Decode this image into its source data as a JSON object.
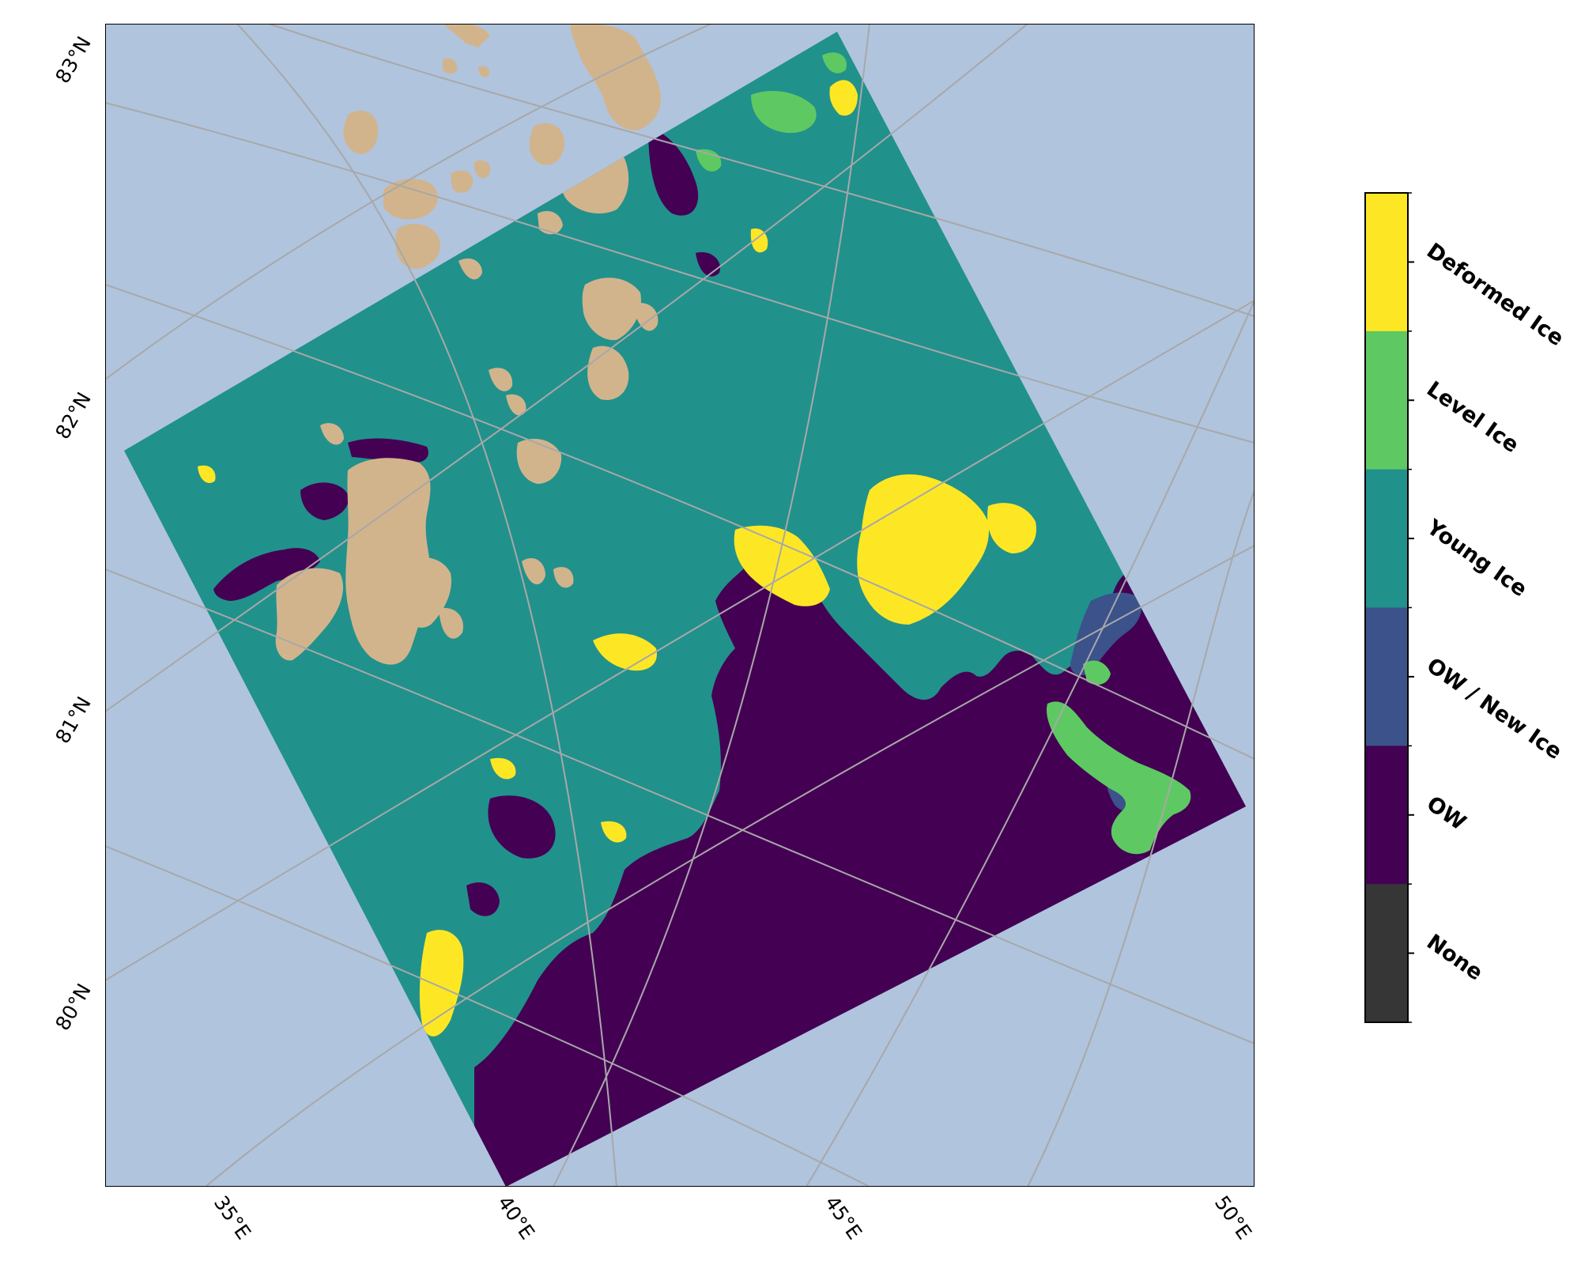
{
  "map": {
    "colors": {
      "ocean": "#b0c4de",
      "land": "#d2b48c",
      "gridline": "#a8a8a8",
      "frame": "#000000"
    },
    "lat_labels": [
      "83°N",
      "82°N",
      "81°N",
      "80°N"
    ],
    "lon_labels": [
      "35°E",
      "40°E",
      "45°E",
      "50°E"
    ]
  },
  "colorbar": {
    "classes": [
      {
        "label": "Deformed Ice",
        "color": "#fde725"
      },
      {
        "label": "Level Ice",
        "color": "#5ec962"
      },
      {
        "label": "Young Ice",
        "color": "#21918c"
      },
      {
        "label": "OW / New Ice",
        "color": "#3b528b"
      },
      {
        "label": "OW",
        "color": "#440154"
      },
      {
        "label": "None",
        "color": "#363636"
      }
    ]
  }
}
